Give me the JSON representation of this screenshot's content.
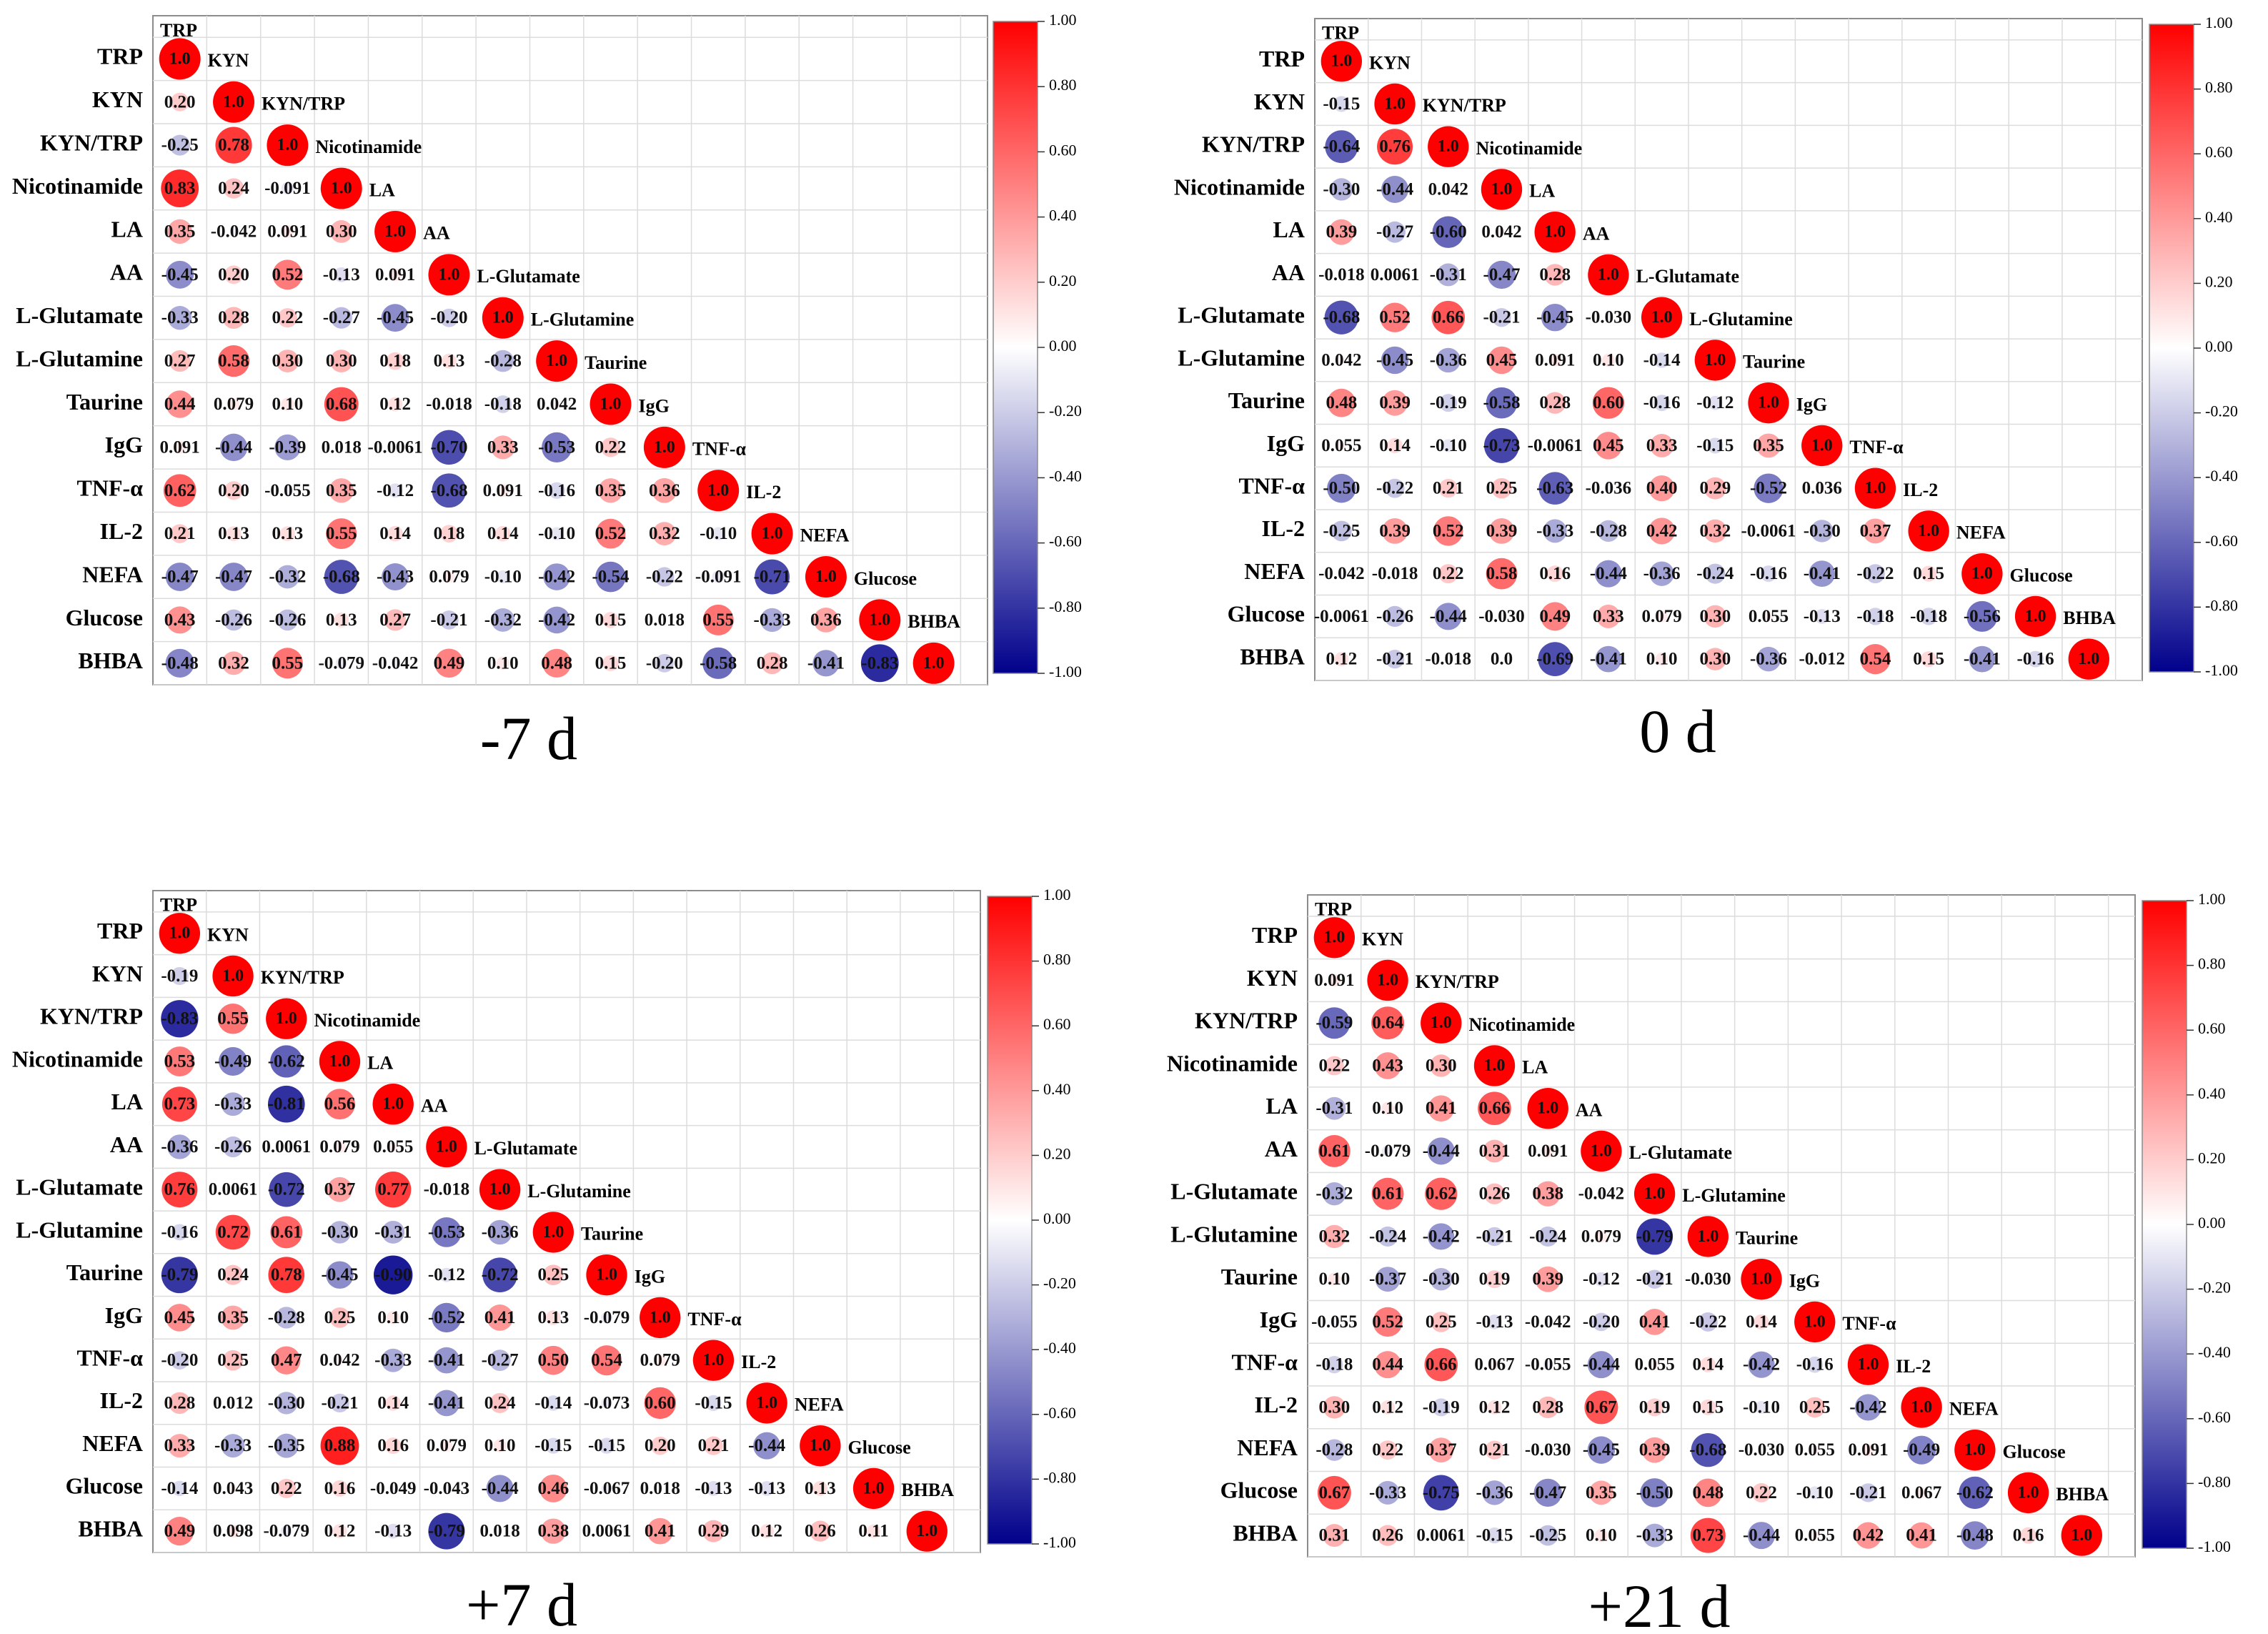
{
  "figure": {
    "variables": [
      "TRP",
      "KYN",
      "KYN/TRP",
      "Nicotinamide",
      "LA",
      "AA",
      "L-Glutamate",
      "L-Glutamine",
      "Taurine",
      "IgG",
      "TNF-α",
      "IL-2",
      "NEFA",
      "Glucose",
      "BHBA"
    ],
    "colorbar_ticks": [
      "1.00",
      "0.80",
      "0.60",
      "0.40",
      "0.20",
      "0.00",
      "-0.20",
      "-0.40",
      "-0.60",
      "-0.80",
      "-1.00"
    ],
    "diagonal_label": "1.0",
    "colors": {
      "positive": "#ff0000",
      "neutral": "#ffffff",
      "negative": "#00008b"
    }
  },
  "chart_data": [
    {
      "type": "heatmap",
      "title": "-7 d",
      "value_range": [
        -1,
        1
      ],
      "labels": [
        [
          "1.0"
        ],
        [
          "0.20",
          "1.0"
        ],
        [
          "-0.25",
          "0.78",
          "1.0"
        ],
        [
          "0.83",
          "0.24",
          "-0.091",
          "1.0"
        ],
        [
          "0.35",
          "-0.042",
          "0.091",
          "0.30",
          "1.0"
        ],
        [
          "-0.45",
          "0.20",
          "0.52",
          "-0.13",
          "0.091",
          "1.0"
        ],
        [
          "-0.33",
          "0.28",
          "0.22",
          "-0.27",
          "-0.45",
          "-0.20",
          "1.0"
        ],
        [
          "0.27",
          "0.58",
          "0.30",
          "0.30",
          "0.18",
          "0.13",
          "-0.28",
          "1.0"
        ],
        [
          "0.44",
          "0.079",
          "0.10",
          "0.68",
          "0.12",
          "-0.018",
          "-0.18",
          "0.042",
          "1.0"
        ],
        [
          "0.091",
          "-0.44",
          "-0.39",
          "0.018",
          "-0.0061",
          "-0.70",
          "0.33",
          "-0.53",
          "0.22",
          "1.0"
        ],
        [
          "0.62",
          "0.20",
          "-0.055",
          "0.35",
          "-0.12",
          "-0.68",
          "0.091",
          "-0.16",
          "0.35",
          "0.36",
          "1.0"
        ],
        [
          "0.21",
          "0.13",
          "0.13",
          "0.55",
          "0.14",
          "0.18",
          "0.14",
          "-0.10",
          "0.52",
          "0.32",
          "-0.10",
          "1.0"
        ],
        [
          "-0.47",
          "-0.47",
          "-0.32",
          "-0.68",
          "-0.43",
          "0.079",
          "-0.10",
          "-0.42",
          "-0.54",
          "-0.22",
          "-0.091",
          "-0.71",
          "1.0"
        ],
        [
          "0.43",
          "-0.26",
          "-0.26",
          "0.13",
          "0.27",
          "-0.21",
          "-0.32",
          "-0.42",
          "0.15",
          "0.018",
          "0.55",
          "-0.33",
          "0.36",
          "1.0"
        ],
        [
          "-0.48",
          "0.32",
          "0.55",
          "-0.079",
          "-0.042",
          "0.49",
          "0.10",
          "0.48",
          "0.15",
          "-0.20",
          "-0.58",
          "0.28",
          "-0.41",
          "-0.83",
          "1.0"
        ]
      ]
    },
    {
      "type": "heatmap",
      "title": "0 d",
      "value_range": [
        -1,
        1
      ],
      "labels": [
        [
          "1.0"
        ],
        [
          "-0.15",
          "1.0"
        ],
        [
          "-0.64",
          "0.76",
          "1.0"
        ],
        [
          "-0.30",
          "-0.44",
          "0.042",
          "1.0"
        ],
        [
          "0.39",
          "-0.27",
          "-0.60",
          "0.042",
          "1.0"
        ],
        [
          "-0.018",
          "0.0061",
          "-0.31",
          "-0.47",
          "0.28",
          "1.0"
        ],
        [
          "-0.68",
          "0.52",
          "0.66",
          "-0.21",
          "-0.45",
          "-0.030",
          "1.0"
        ],
        [
          "0.042",
          "-0.45",
          "-0.36",
          "0.45",
          "0.091",
          "0.10",
          "-0.14",
          "1.0"
        ],
        [
          "0.48",
          "0.39",
          "-0.19",
          "-0.58",
          "0.28",
          "0.60",
          "-0.16",
          "-0.12",
          "1.0"
        ],
        [
          "0.055",
          "0.14",
          "-0.10",
          "-0.73",
          "-0.0061",
          "0.45",
          "0.33",
          "-0.15",
          "0.35",
          "1.0"
        ],
        [
          "-0.50",
          "-0.22",
          "0.21",
          "0.25",
          "-0.63",
          "-0.036",
          "0.40",
          "0.29",
          "-0.52",
          "0.036",
          "1.0"
        ],
        [
          "-0.25",
          "0.39",
          "0.52",
          "0.39",
          "-0.33",
          "-0.28",
          "0.42",
          "0.32",
          "-0.0061",
          "-0.30",
          "0.37",
          "1.0"
        ],
        [
          "-0.042",
          "-0.018",
          "0.22",
          "0.58",
          "0.16",
          "-0.44",
          "-0.36",
          "-0.24",
          "-0.16",
          "-0.41",
          "-0.22",
          "0.15",
          "1.0"
        ],
        [
          "-0.0061",
          "-0.26",
          "-0.44",
          "-0.030",
          "0.49",
          "0.33",
          "0.079",
          "0.30",
          "0.055",
          "-0.13",
          "-0.18",
          "-0.18",
          "-0.56",
          "1.0"
        ],
        [
          "0.12",
          "-0.21",
          "-0.018",
          "0.0",
          "-0.69",
          "-0.41",
          "0.10",
          "0.30",
          "-0.36",
          "-0.012",
          "0.54",
          "0.15",
          "-0.41",
          "-0.16",
          "1.0"
        ]
      ]
    },
    {
      "type": "heatmap",
      "title": "+7 d",
      "value_range": [
        -1,
        1
      ],
      "labels": [
        [
          "1.0"
        ],
        [
          "-0.19",
          "1.0"
        ],
        [
          "-0.83",
          "0.55",
          "1.0"
        ],
        [
          "0.53",
          "-0.49",
          "-0.62",
          "1.0"
        ],
        [
          "0.73",
          "-0.33",
          "-0.81",
          "0.56",
          "1.0"
        ],
        [
          "-0.36",
          "-0.26",
          "0.0061",
          "0.079",
          "0.055",
          "1.0"
        ],
        [
          "0.76",
          "0.0061",
          "-0.72",
          "0.37",
          "0.77",
          "-0.018",
          "1.0"
        ],
        [
          "-0.16",
          "0.72",
          "0.61",
          "-0.30",
          "-0.31",
          "-0.53",
          "-0.36",
          "1.0"
        ],
        [
          "-0.79",
          "0.24",
          "0.78",
          "-0.45",
          "-0.90",
          "-0.12",
          "-0.72",
          "0.25",
          "1.0"
        ],
        [
          "0.45",
          "0.35",
          "-0.28",
          "0.25",
          "0.10",
          "-0.52",
          "0.41",
          "0.13",
          "-0.079",
          "1.0"
        ],
        [
          "-0.20",
          "0.25",
          "0.47",
          "0.042",
          "-0.33",
          "-0.41",
          "-0.27",
          "0.50",
          "0.54",
          "0.079",
          "1.0"
        ],
        [
          "0.28",
          "0.012",
          "-0.30",
          "-0.21",
          "0.14",
          "-0.41",
          "0.24",
          "-0.14",
          "-0.073",
          "0.60",
          "-0.15",
          "1.0"
        ],
        [
          "0.33",
          "-0.33",
          "-0.35",
          "0.88",
          "0.16",
          "0.079",
          "0.10",
          "-0.15",
          "-0.15",
          "0.20",
          "0.21",
          "-0.44",
          "1.0"
        ],
        [
          "-0.14",
          "0.043",
          "0.22",
          "0.16",
          "-0.049",
          "-0.043",
          "-0.44",
          "0.46",
          "-0.067",
          "0.018",
          "-0.13",
          "-0.13",
          "0.13",
          "1.0"
        ],
        [
          "0.49",
          "0.098",
          "-0.079",
          "0.12",
          "-0.13",
          "-0.79",
          "0.018",
          "0.38",
          "0.0061",
          "0.41",
          "0.29",
          "0.12",
          "0.26",
          "0.11",
          "1.0"
        ]
      ]
    },
    {
      "type": "heatmap",
      "title": "+21 d",
      "value_range": [
        -1,
        1
      ],
      "labels": [
        [
          "1.0"
        ],
        [
          "0.091",
          "1.0"
        ],
        [
          "-0.59",
          "0.64",
          "1.0"
        ],
        [
          "0.22",
          "0.43",
          "0.30",
          "1.0"
        ],
        [
          "-0.31",
          "0.10",
          "0.41",
          "0.66",
          "1.0"
        ],
        [
          "0.61",
          "-0.079",
          "-0.44",
          "0.31",
          "0.091",
          "1.0"
        ],
        [
          "-0.32",
          "0.61",
          "0.62",
          "0.26",
          "0.38",
          "-0.042",
          "1.0"
        ],
        [
          "0.32",
          "-0.24",
          "-0.42",
          "-0.21",
          "-0.24",
          "0.079",
          "-0.79",
          "1.0"
        ],
        [
          "0.10",
          "-0.37",
          "-0.30",
          "0.19",
          "0.39",
          "-0.12",
          "-0.21",
          "-0.030",
          "1.0"
        ],
        [
          "-0.055",
          "0.52",
          "0.25",
          "-0.13",
          "-0.042",
          "-0.20",
          "0.41",
          "-0.22",
          "0.14",
          "1.0"
        ],
        [
          "-0.18",
          "0.44",
          "0.66",
          "0.067",
          "-0.055",
          "-0.44",
          "0.055",
          "0.14",
          "-0.42",
          "-0.16",
          "1.0"
        ],
        [
          "0.30",
          "0.12",
          "-0.19",
          "0.12",
          "0.28",
          "0.67",
          "0.19",
          "0.15",
          "-0.10",
          "0.25",
          "-0.42",
          "1.0"
        ],
        [
          "-0.28",
          "0.22",
          "0.37",
          "0.21",
          "-0.030",
          "-0.45",
          "0.39",
          "-0.68",
          "-0.030",
          "0.055",
          "0.091",
          "-0.49",
          "1.0"
        ],
        [
          "0.67",
          "-0.33",
          "-0.75",
          "-0.36",
          "-0.47",
          "0.35",
          "-0.50",
          "0.48",
          "0.22",
          "-0.10",
          "-0.21",
          "0.067",
          "-0.62",
          "1.0"
        ],
        [
          "0.31",
          "0.26",
          "0.0061",
          "-0.15",
          "-0.25",
          "0.10",
          "-0.33",
          "0.73",
          "-0.44",
          "0.055",
          "0.42",
          "0.41",
          "-0.48",
          "0.16",
          "1.0"
        ]
      ]
    }
  ]
}
